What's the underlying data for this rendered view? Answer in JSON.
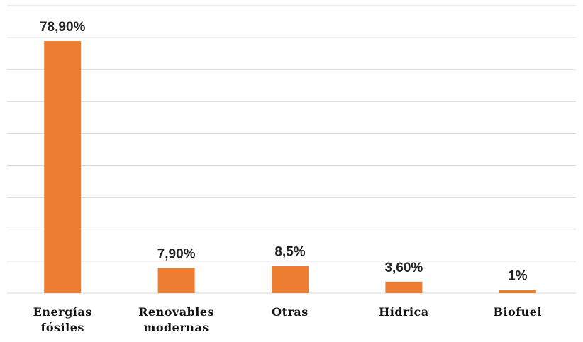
{
  "chart_data": {
    "type": "bar",
    "categories": [
      "Energías fósiles",
      "Renovables modernas",
      "Otras",
      "Hídrica",
      "Biofuel"
    ],
    "values": [
      78.9,
      7.9,
      8.5,
      3.6,
      1
    ],
    "value_labels": [
      "78,90%",
      "7,90%",
      "8,5%",
      "3,60%",
      "1%"
    ],
    "color": "#ed7d31",
    "ylim": [
      0,
      90
    ],
    "yticks": [
      0,
      10,
      20,
      30,
      40,
      50,
      60,
      70,
      80,
      90
    ],
    "grid": true
  }
}
